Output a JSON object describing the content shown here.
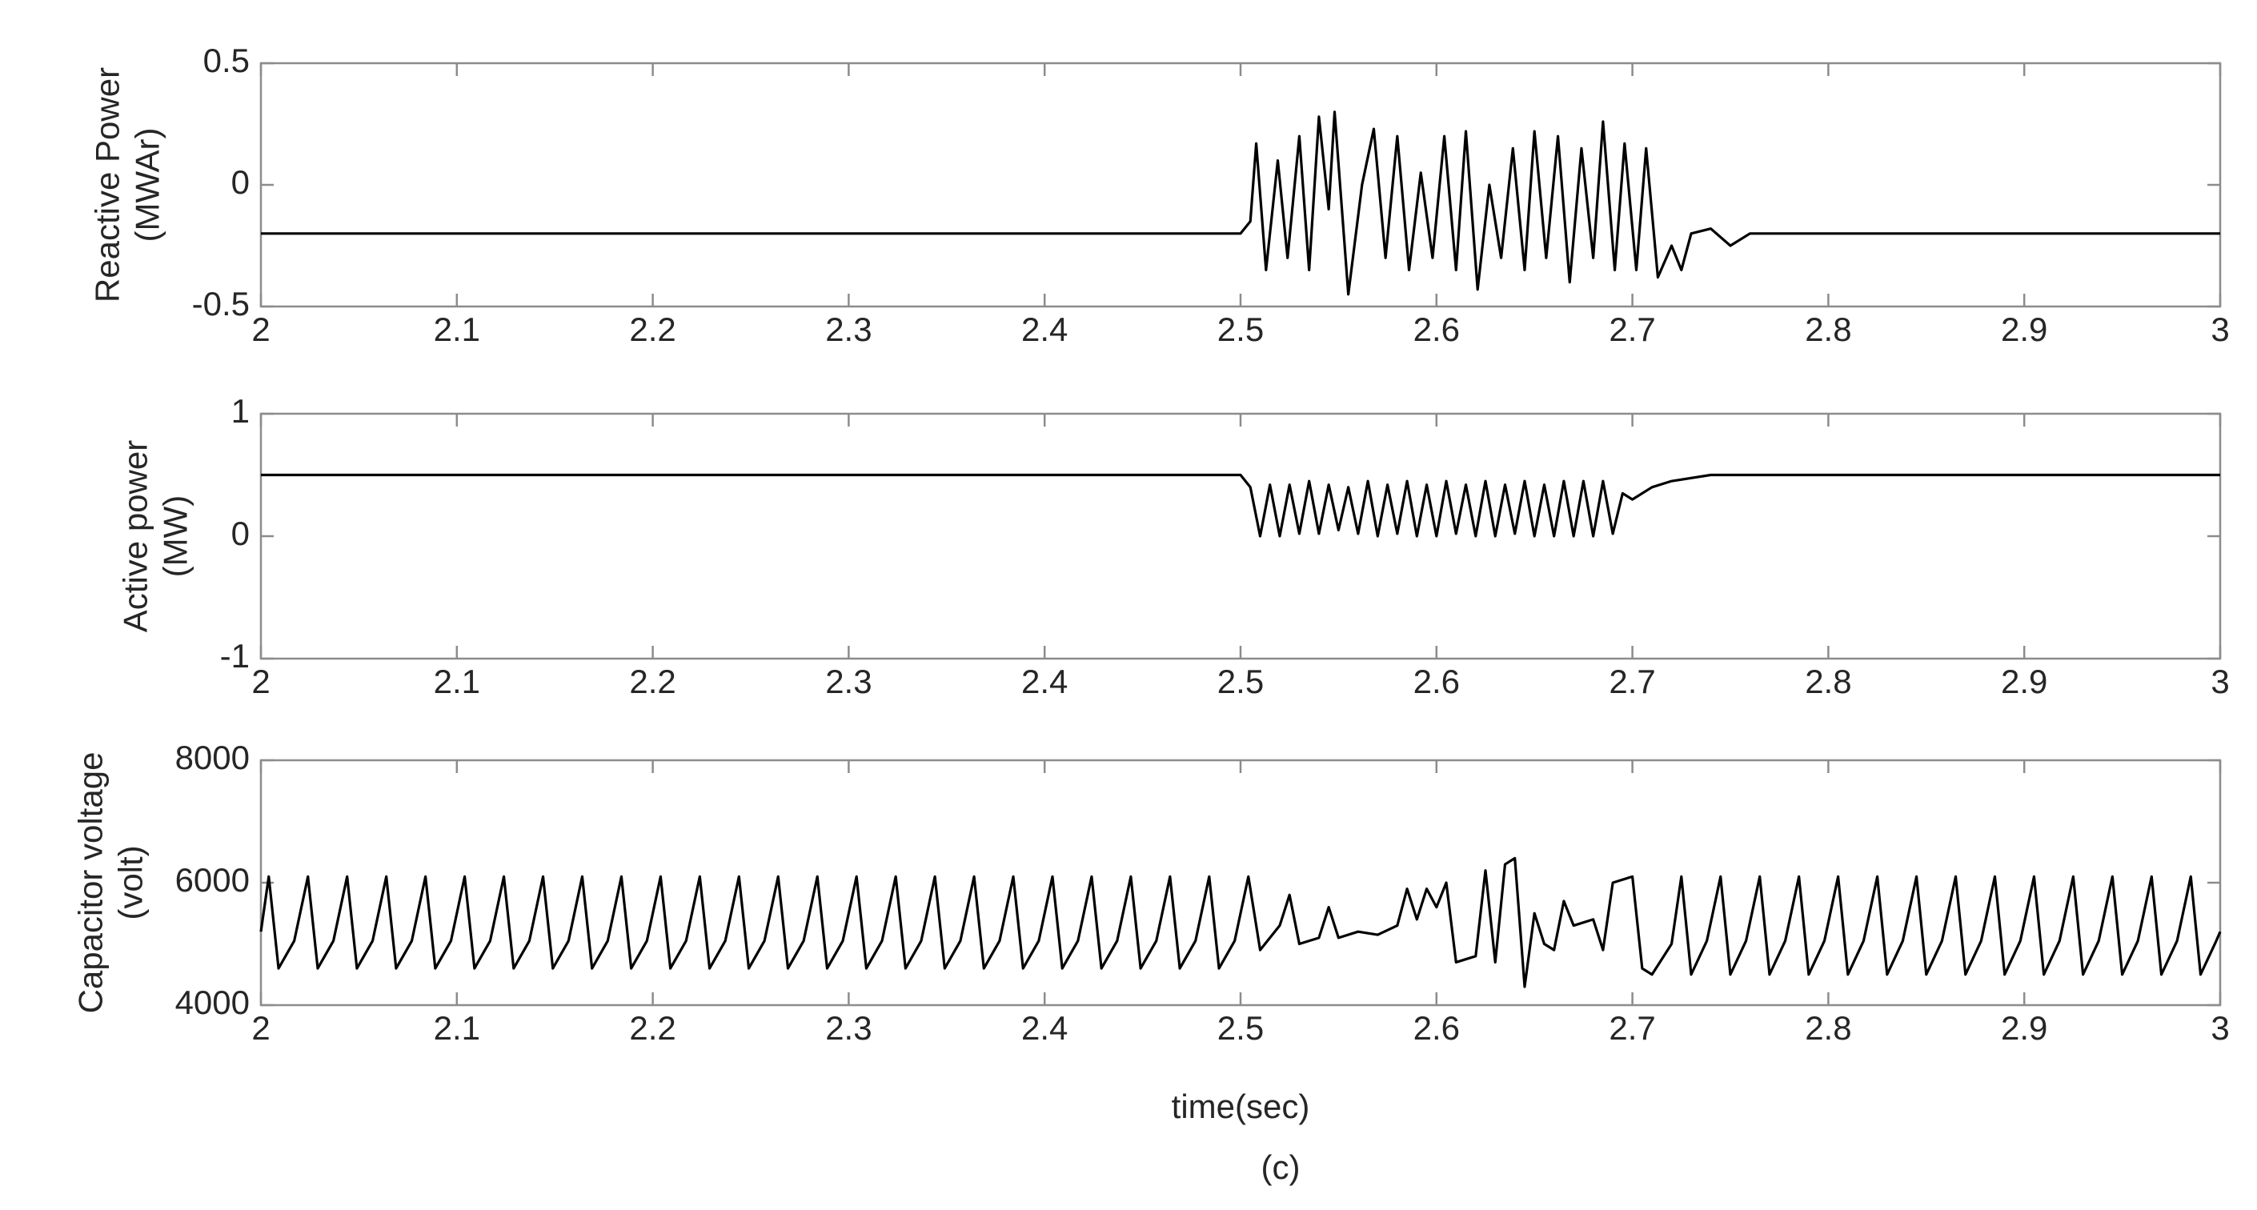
{
  "chart_data": [
    {
      "type": "line",
      "ylabel": [
        "Reactive Power",
        "(MWAr)"
      ],
      "color": "#000000",
      "xlim": [
        2,
        3
      ],
      "xticks": [
        2,
        2.1,
        2.2,
        2.3,
        2.4,
        2.5,
        2.6,
        2.7,
        2.8,
        2.9,
        3
      ],
      "ylim": [
        -0.5,
        0.5
      ],
      "yticks": [
        -0.5,
        0,
        0.5
      ],
      "x": [
        2,
        2.5,
        2.505,
        2.508,
        2.513,
        2.519,
        2.524,
        2.53,
        2.535,
        2.54,
        2.545,
        2.548,
        2.555,
        2.562,
        2.568,
        2.574,
        2.58,
        2.586,
        2.592,
        2.598,
        2.604,
        2.61,
        2.615,
        2.621,
        2.627,
        2.633,
        2.639,
        2.645,
        2.65,
        2.656,
        2.662,
        2.668,
        2.674,
        2.68,
        2.685,
        2.691,
        2.696,
        2.702,
        2.707,
        2.713,
        2.72,
        2.725,
        2.73,
        2.74,
        2.75,
        2.76,
        3
      ],
      "values": [
        -0.2,
        -0.2,
        -0.15,
        0.17,
        -0.35,
        0.1,
        -0.3,
        0.2,
        -0.35,
        0.28,
        -0.1,
        0.3,
        -0.45,
        0.0,
        0.23,
        -0.3,
        0.2,
        -0.35,
        0.05,
        -0.3,
        0.2,
        -0.35,
        0.22,
        -0.43,
        0.0,
        -0.3,
        0.15,
        -0.35,
        0.22,
        -0.3,
        0.2,
        -0.4,
        0.15,
        -0.3,
        0.26,
        -0.35,
        0.17,
        -0.35,
        0.15,
        -0.38,
        -0.25,
        -0.35,
        -0.2,
        -0.18,
        -0.25,
        -0.2,
        -0.2
      ]
    },
    {
      "type": "line",
      "ylabel": [
        "Active power",
        "(MW)"
      ],
      "color": "#000000",
      "xlim": [
        2,
        3
      ],
      "xticks": [
        2,
        2.1,
        2.2,
        2.3,
        2.4,
        2.5,
        2.6,
        2.7,
        2.8,
        2.9,
        3
      ],
      "ylim": [
        -1,
        1
      ],
      "yticks": [
        -1,
        0,
        1
      ],
      "x": [
        2,
        2.5,
        2.505,
        2.51,
        2.515,
        2.52,
        2.525,
        2.53,
        2.535,
        2.54,
        2.545,
        2.55,
        2.555,
        2.56,
        2.565,
        2.57,
        2.575,
        2.58,
        2.585,
        2.59,
        2.595,
        2.6,
        2.605,
        2.61,
        2.615,
        2.62,
        2.625,
        2.63,
        2.635,
        2.64,
        2.645,
        2.65,
        2.655,
        2.66,
        2.665,
        2.67,
        2.675,
        2.68,
        2.685,
        2.69,
        2.695,
        2.7,
        2.71,
        2.72,
        2.74,
        3
      ],
      "values": [
        0.5,
        0.5,
        0.4,
        0,
        0.42,
        0,
        0.42,
        0.02,
        0.45,
        0.02,
        0.42,
        0.05,
        0.4,
        0.02,
        0.45,
        0,
        0.42,
        0.02,
        0.45,
        0,
        0.42,
        0,
        0.45,
        0.02,
        0.42,
        0,
        0.45,
        0,
        0.42,
        0.02,
        0.45,
        0,
        0.42,
        0,
        0.45,
        0,
        0.45,
        0,
        0.45,
        0.02,
        0.35,
        0.3,
        0.4,
        0.45,
        0.5,
        0.5
      ]
    },
    {
      "type": "line",
      "ylabel": [
        "Capacitor voltage",
        "(volt)"
      ],
      "xlabel": "time(sec)",
      "color": "#000000",
      "xlim": [
        2,
        3
      ],
      "xticks": [
        2,
        2.1,
        2.2,
        2.3,
        2.4,
        2.5,
        2.6,
        2.7,
        2.8,
        2.9,
        3
      ],
      "ylim": [
        4000,
        8000
      ],
      "yticks": [
        4000,
        6000,
        8000
      ],
      "x": [
        2,
        2.004,
        2.009,
        2.017,
        2.024,
        2.029,
        2.037,
        2.044,
        2.049,
        2.057,
        2.064,
        2.069,
        2.077,
        2.084,
        2.089,
        2.097,
        2.104,
        2.109,
        2.117,
        2.124,
        2.129,
        2.137,
        2.144,
        2.149,
        2.157,
        2.164,
        2.169,
        2.177,
        2.184,
        2.189,
        2.197,
        2.204,
        2.209,
        2.217,
        2.224,
        2.229,
        2.237,
        2.244,
        2.249,
        2.257,
        2.264,
        2.269,
        2.277,
        2.284,
        2.289,
        2.297,
        2.304,
        2.309,
        2.317,
        2.324,
        2.329,
        2.337,
        2.344,
        2.349,
        2.357,
        2.364,
        2.369,
        2.377,
        2.384,
        2.389,
        2.397,
        2.404,
        2.409,
        2.417,
        2.424,
        2.429,
        2.437,
        2.444,
        2.449,
        2.457,
        2.464,
        2.469,
        2.477,
        2.484,
        2.489,
        2.497,
        2.504,
        2.51,
        2.52,
        2.525,
        2.53,
        2.54,
        2.545,
        2.55,
        2.56,
        2.57,
        2.58,
        2.585,
        2.59,
        2.595,
        2.6,
        2.605,
        2.61,
        2.62,
        2.625,
        2.63,
        2.635,
        2.64,
        2.645,
        2.65,
        2.655,
        2.66,
        2.665,
        2.67,
        2.68,
        2.685,
        2.69,
        2.7,
        2.705,
        2.71,
        2.72,
        2.725,
        2.73,
        2.738,
        2.745,
        2.75,
        2.758,
        2.765,
        2.77,
        2.778,
        2.785,
        2.79,
        2.798,
        2.805,
        2.81,
        2.818,
        2.825,
        2.83,
        2.838,
        2.845,
        2.85,
        2.858,
        2.865,
        2.87,
        2.878,
        2.885,
        2.89,
        2.898,
        2.905,
        2.91,
        2.918,
        2.925,
        2.93,
        2.938,
        2.945,
        2.95,
        2.958,
        2.965,
        2.97,
        2.978,
        2.985,
        2.99,
        2.998,
        3
      ],
      "values": [
        5200,
        6100,
        4600,
        5050,
        6100,
        4600,
        5050,
        6100,
        4600,
        5050,
        6100,
        4600,
        5050,
        6100,
        4600,
        5050,
        6100,
        4600,
        5050,
        6100,
        4600,
        5050,
        6100,
        4600,
        5050,
        6100,
        4600,
        5050,
        6100,
        4600,
        5050,
        6100,
        4600,
        5050,
        6100,
        4600,
        5050,
        6100,
        4600,
        5050,
        6100,
        4600,
        5050,
        6100,
        4600,
        5050,
        6100,
        4600,
        5050,
        6100,
        4600,
        5050,
        6100,
        4600,
        5050,
        6100,
        4600,
        5050,
        6100,
        4600,
        5050,
        6100,
        4600,
        5050,
        6100,
        4600,
        5050,
        6100,
        4600,
        5050,
        6100,
        4600,
        5050,
        6100,
        4600,
        5050,
        6100,
        4900,
        5300,
        5800,
        5000,
        5100,
        5600,
        5100,
        5200,
        5150,
        5300,
        5900,
        5400,
        5900,
        5600,
        6000,
        4700,
        4800,
        6200,
        4700,
        6300,
        6400,
        4300,
        5500,
        5000,
        4900,
        5700,
        5300,
        5400,
        4900,
        6000,
        6100,
        4600,
        4500,
        5000,
        6100,
        4500,
        5050,
        6100,
        4500,
        5050,
        6100,
        4500,
        5050,
        6100,
        4500,
        5050,
        6100,
        4500,
        5050,
        6100,
        4500,
        5050,
        6100,
        4500,
        5050,
        6100,
        4500,
        5050,
        6100,
        4500,
        5050,
        6100,
        4500,
        5050,
        6100,
        4500,
        5050,
        6100,
        4500,
        5050,
        6100,
        4500,
        5050,
        6100,
        4500,
        5050,
        5200
      ]
    }
  ],
  "caption": "(c)"
}
